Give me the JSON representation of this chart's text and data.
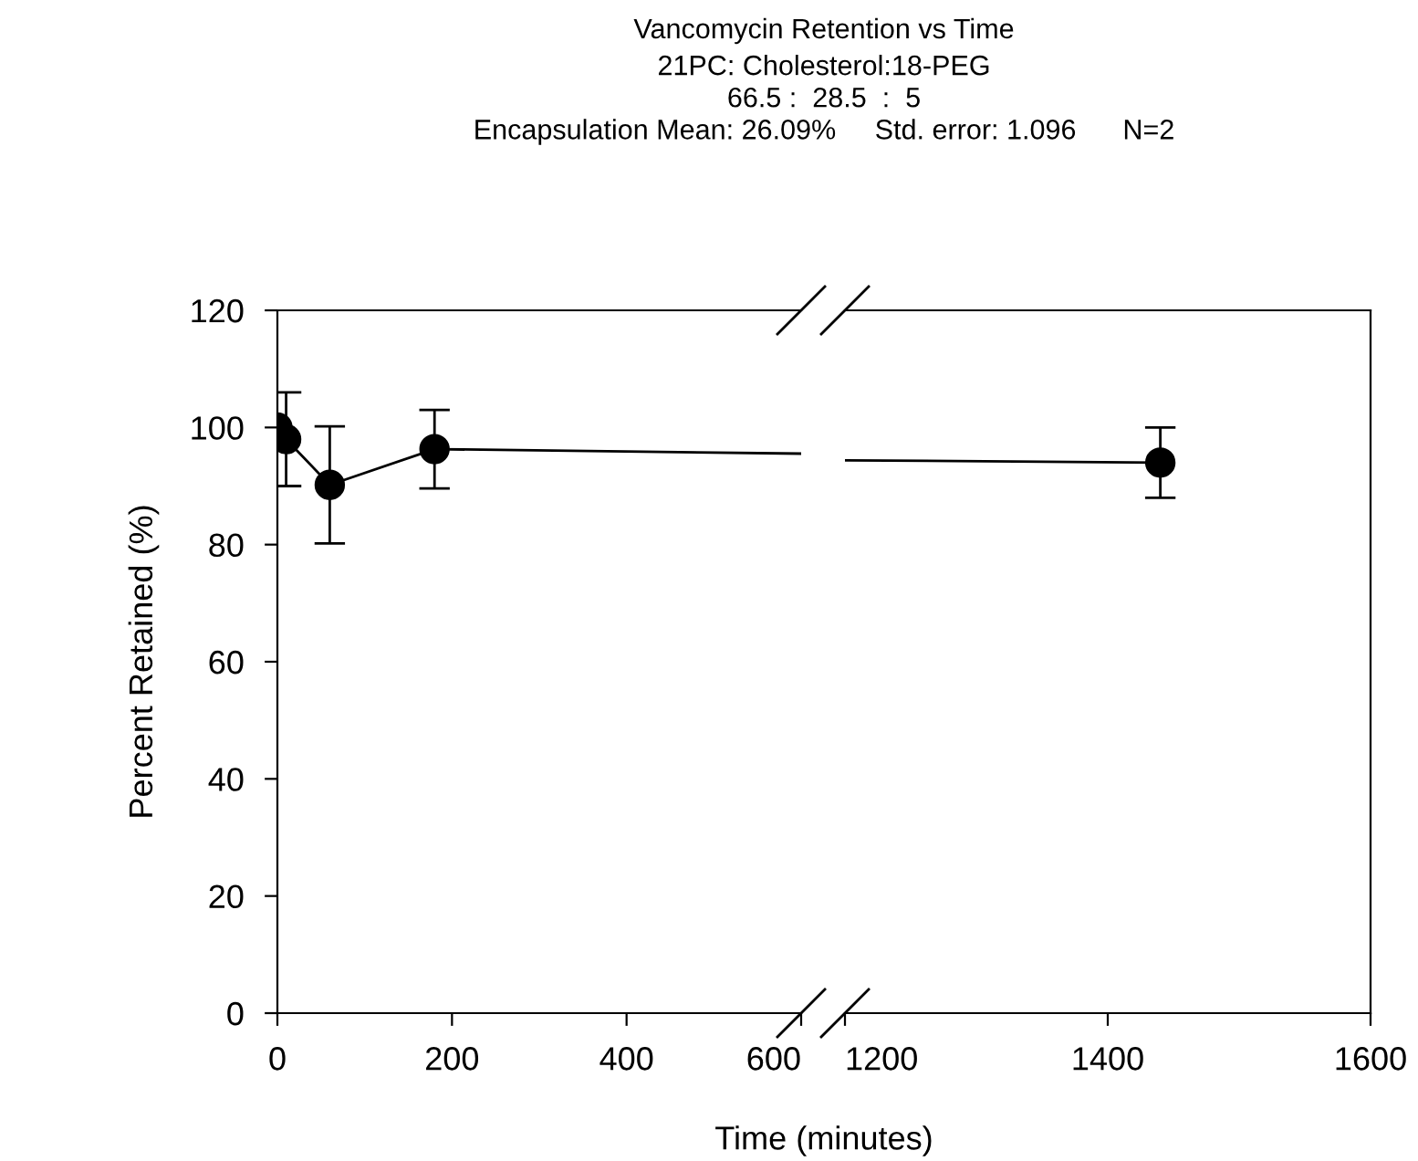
{
  "chart_data": [
    {
      "type": "line",
      "title": "Vancomycin Retention vs Time",
      "subtitle": "21PC: Cholesterol:18-PEG\n66.5 :  28.5  :  5\nEncapsulation Mean: 26.09%     Std. error: 1.096      N=2",
      "xlabel": "Time (minutes)",
      "ylabel": "Percent Retained (%)",
      "x": [
        0,
        10,
        60,
        180
      ],
      "series": [
        {
          "color": "#000000",
          "values": [
            100,
            98,
            90.2,
            96.3
          ],
          "errors": [
            null,
            8,
            10,
            6.7
          ]
        }
      ],
      "xlim": [
        0,
        600
      ],
      "xticks": [
        0,
        200,
        400,
        600
      ],
      "ylim": [
        0,
        120
      ],
      "yticks": [
        0,
        20,
        40,
        60,
        80,
        100,
        120
      ],
      "marker": "circle",
      "line_style": "solid",
      "grid": false,
      "legend": false
    },
    {
      "type": "line",
      "x": [
        1440
      ],
      "series": [
        {
          "color": "#000000",
          "x": [
            1200,
            1440
          ],
          "values": [
            94.4,
            94
          ],
          "marker": "none"
        },
        {
          "color": "#000000",
          "values": [
            94
          ],
          "errors": [
            6
          ]
        }
      ],
      "xlim": [
        1200,
        1600
      ],
      "xticks": [
        1200,
        1400,
        1600
      ],
      "ylim": [
        0,
        120
      ],
      "yticks": [
        0,
        20,
        40,
        60,
        80,
        100,
        120
      ],
      "tick_labels": "x",
      "marker": "circle",
      "line_style": "solid",
      "grid": false,
      "legend": false
    }
  ]
}
